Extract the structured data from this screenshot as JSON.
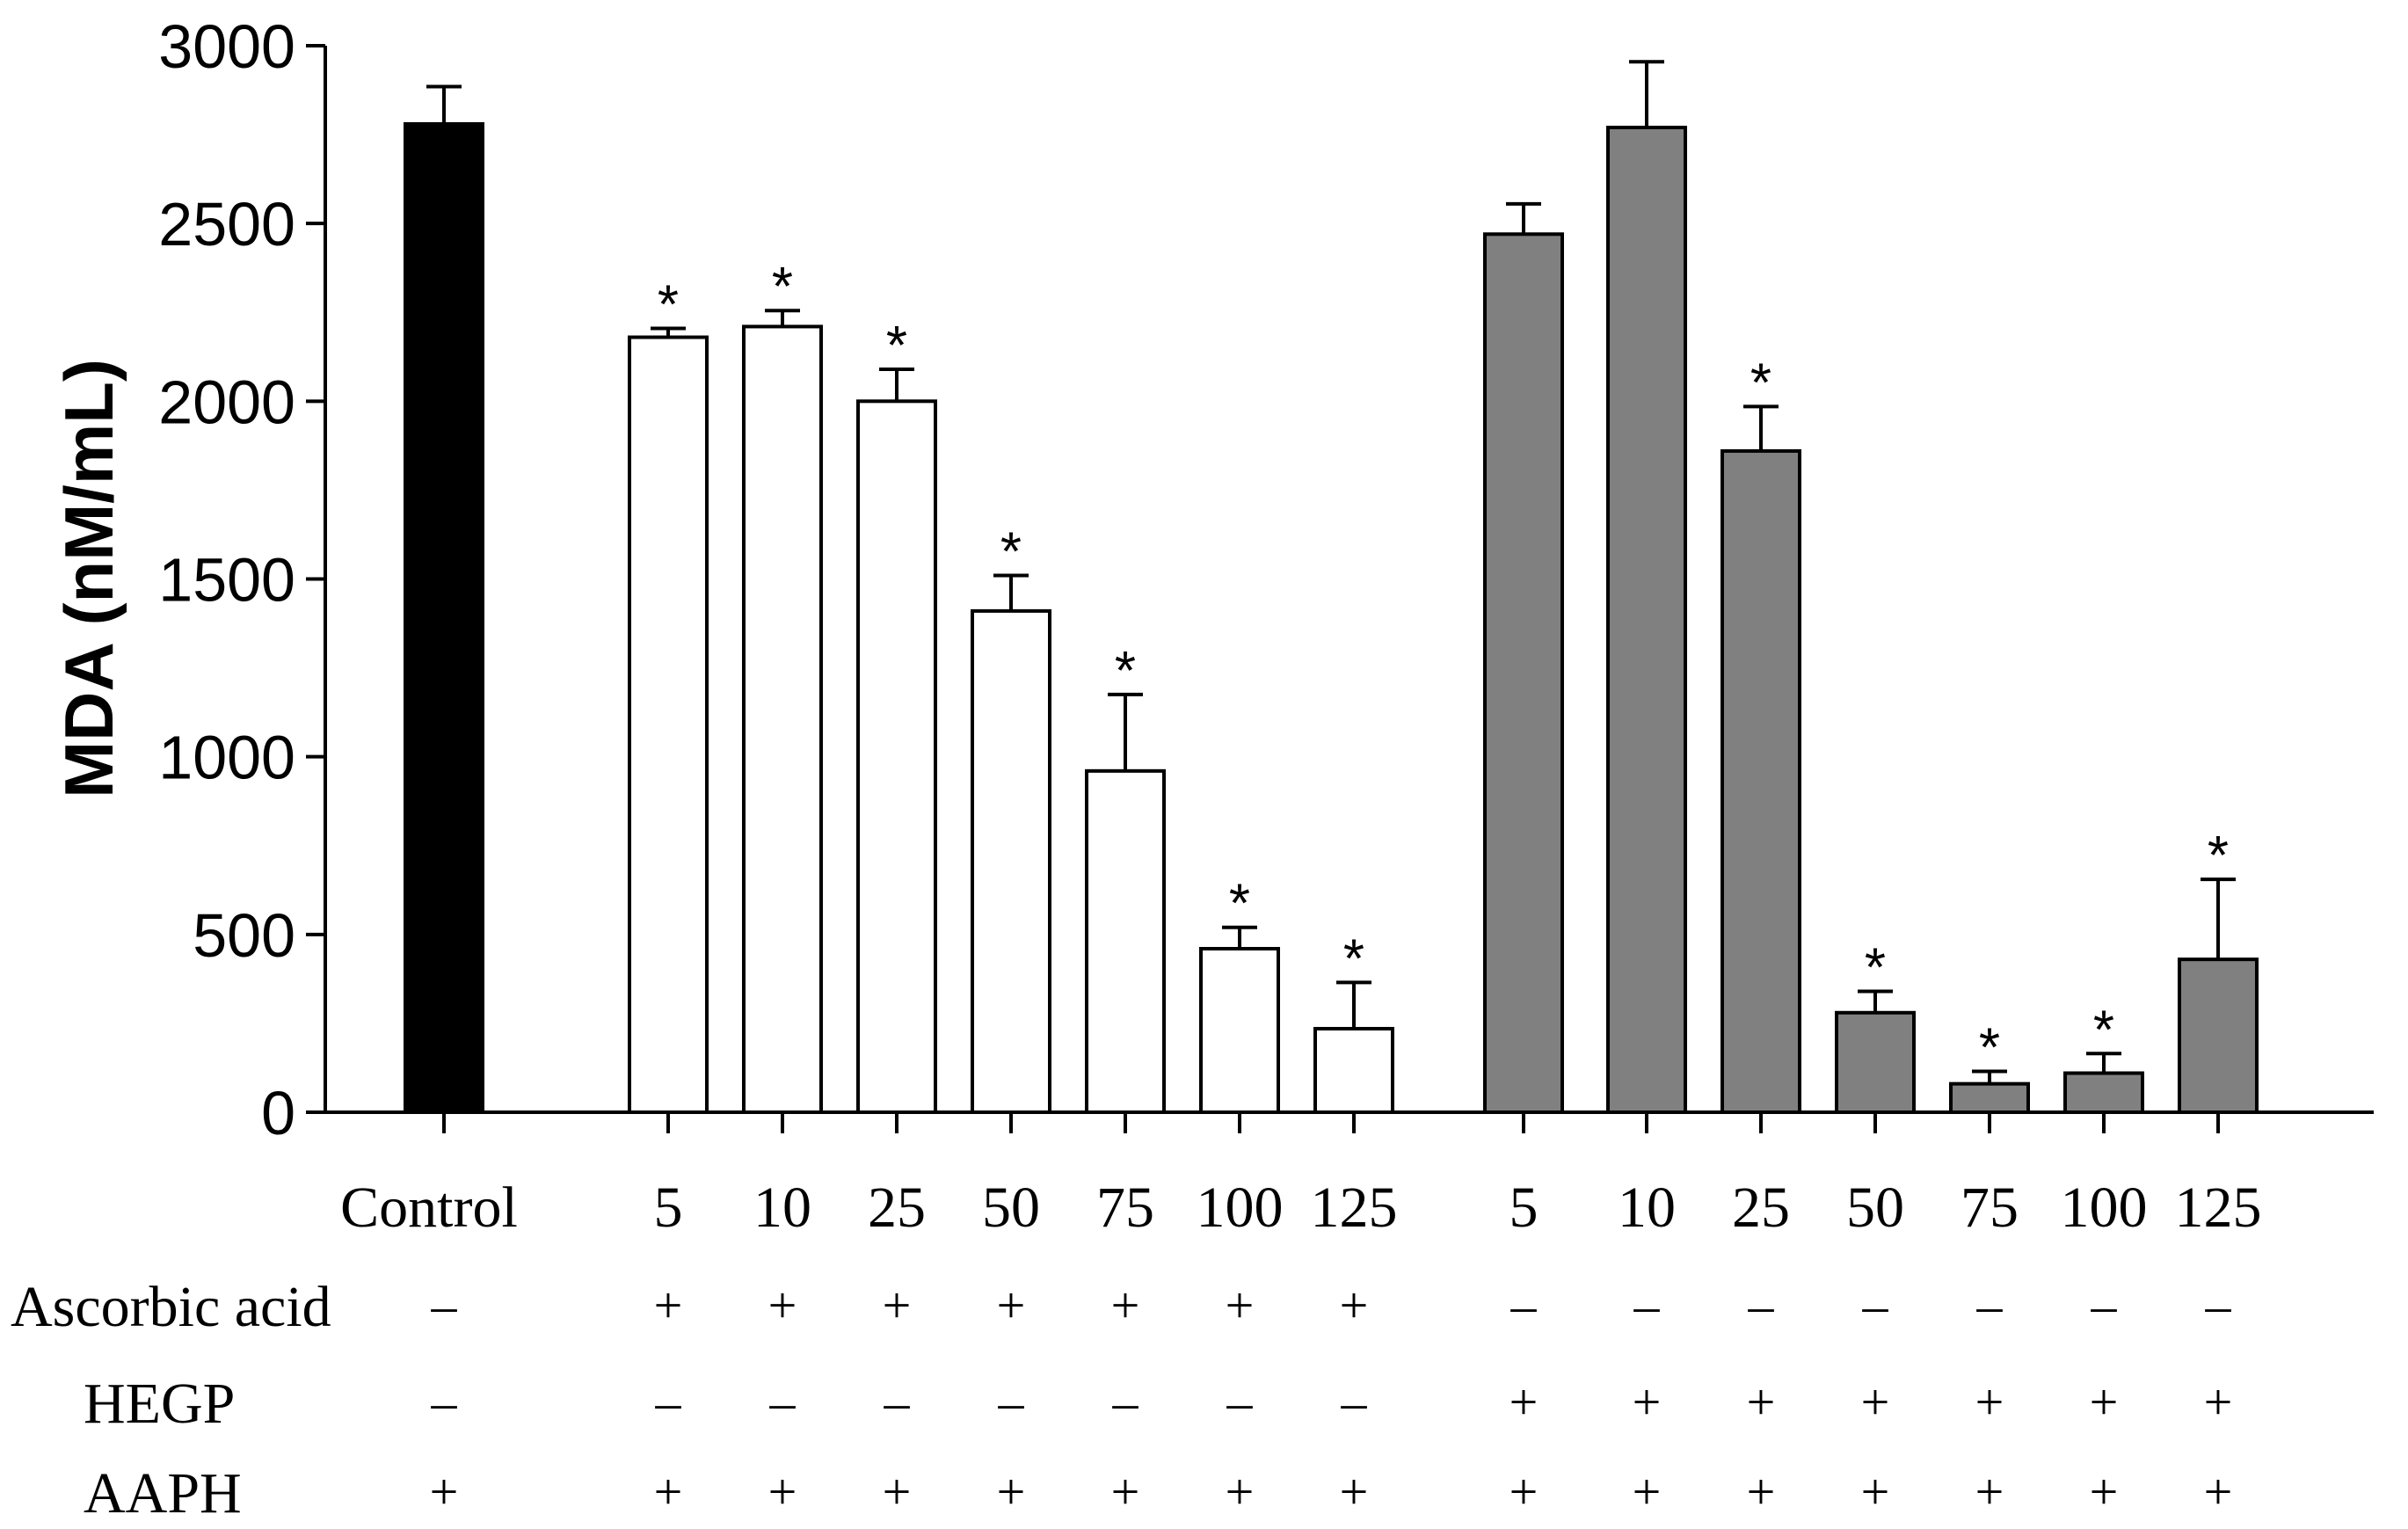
{
  "chart_data": {
    "type": "bar",
    "title": "",
    "xlabel": "",
    "ylabel": "MDA (nM/mL)",
    "ylim": [
      0,
      3000
    ],
    "yticks": [
      "0",
      "500",
      "1000",
      "1500",
      "2000",
      "2500",
      "3000"
    ],
    "grid": false,
    "legend": "none",
    "categories": [
      "Control",
      "5",
      "10",
      "25",
      "50",
      "75",
      "100",
      "125",
      "5",
      "10",
      "25",
      "50",
      "75",
      "100",
      "125"
    ],
    "values": [
      2780,
      2180,
      2210,
      2000,
      1410,
      960,
      460,
      235,
      2470,
      2770,
      1860,
      280,
      80,
      110,
      430
    ],
    "errors": [
      105,
      25,
      45,
      90,
      100,
      215,
      60,
      130,
      85,
      185,
      125,
      60,
      35,
      55,
      225
    ],
    "groups": [
      "control",
      "ascorbic",
      "ascorbic",
      "ascorbic",
      "ascorbic",
      "ascorbic",
      "ascorbic",
      "ascorbic",
      "hegp",
      "hegp",
      "hegp",
      "hegp",
      "hegp",
      "hegp",
      "hegp"
    ],
    "significant": [
      false,
      true,
      true,
      true,
      true,
      true,
      true,
      true,
      false,
      false,
      true,
      true,
      true,
      true,
      true
    ],
    "significance_marker": "*",
    "colors": {
      "control": "#000000",
      "ascorbic": "#ffffff",
      "hegp": "#808080",
      "axis": "#000000"
    },
    "treatment_table": [
      {
        "label": "Ascorbic acid",
        "signs": [
          "–",
          "+",
          "+",
          "+",
          "+",
          "+",
          "+",
          "+",
          "–",
          "–",
          "–",
          "–",
          "–",
          "–",
          "–"
        ]
      },
      {
        "label": "HEGP",
        "signs": [
          "–",
          "–",
          "–",
          "–",
          "–",
          "–",
          "–",
          "–",
          "+",
          "+",
          "+",
          "+",
          "+",
          "+",
          "+"
        ]
      },
      {
        "label": "AAPH",
        "signs": [
          "+",
          "+",
          "+",
          "+",
          "+",
          "+",
          "+",
          "+",
          "+",
          "+",
          "+",
          "+",
          "+",
          "+",
          "+"
        ]
      }
    ]
  }
}
